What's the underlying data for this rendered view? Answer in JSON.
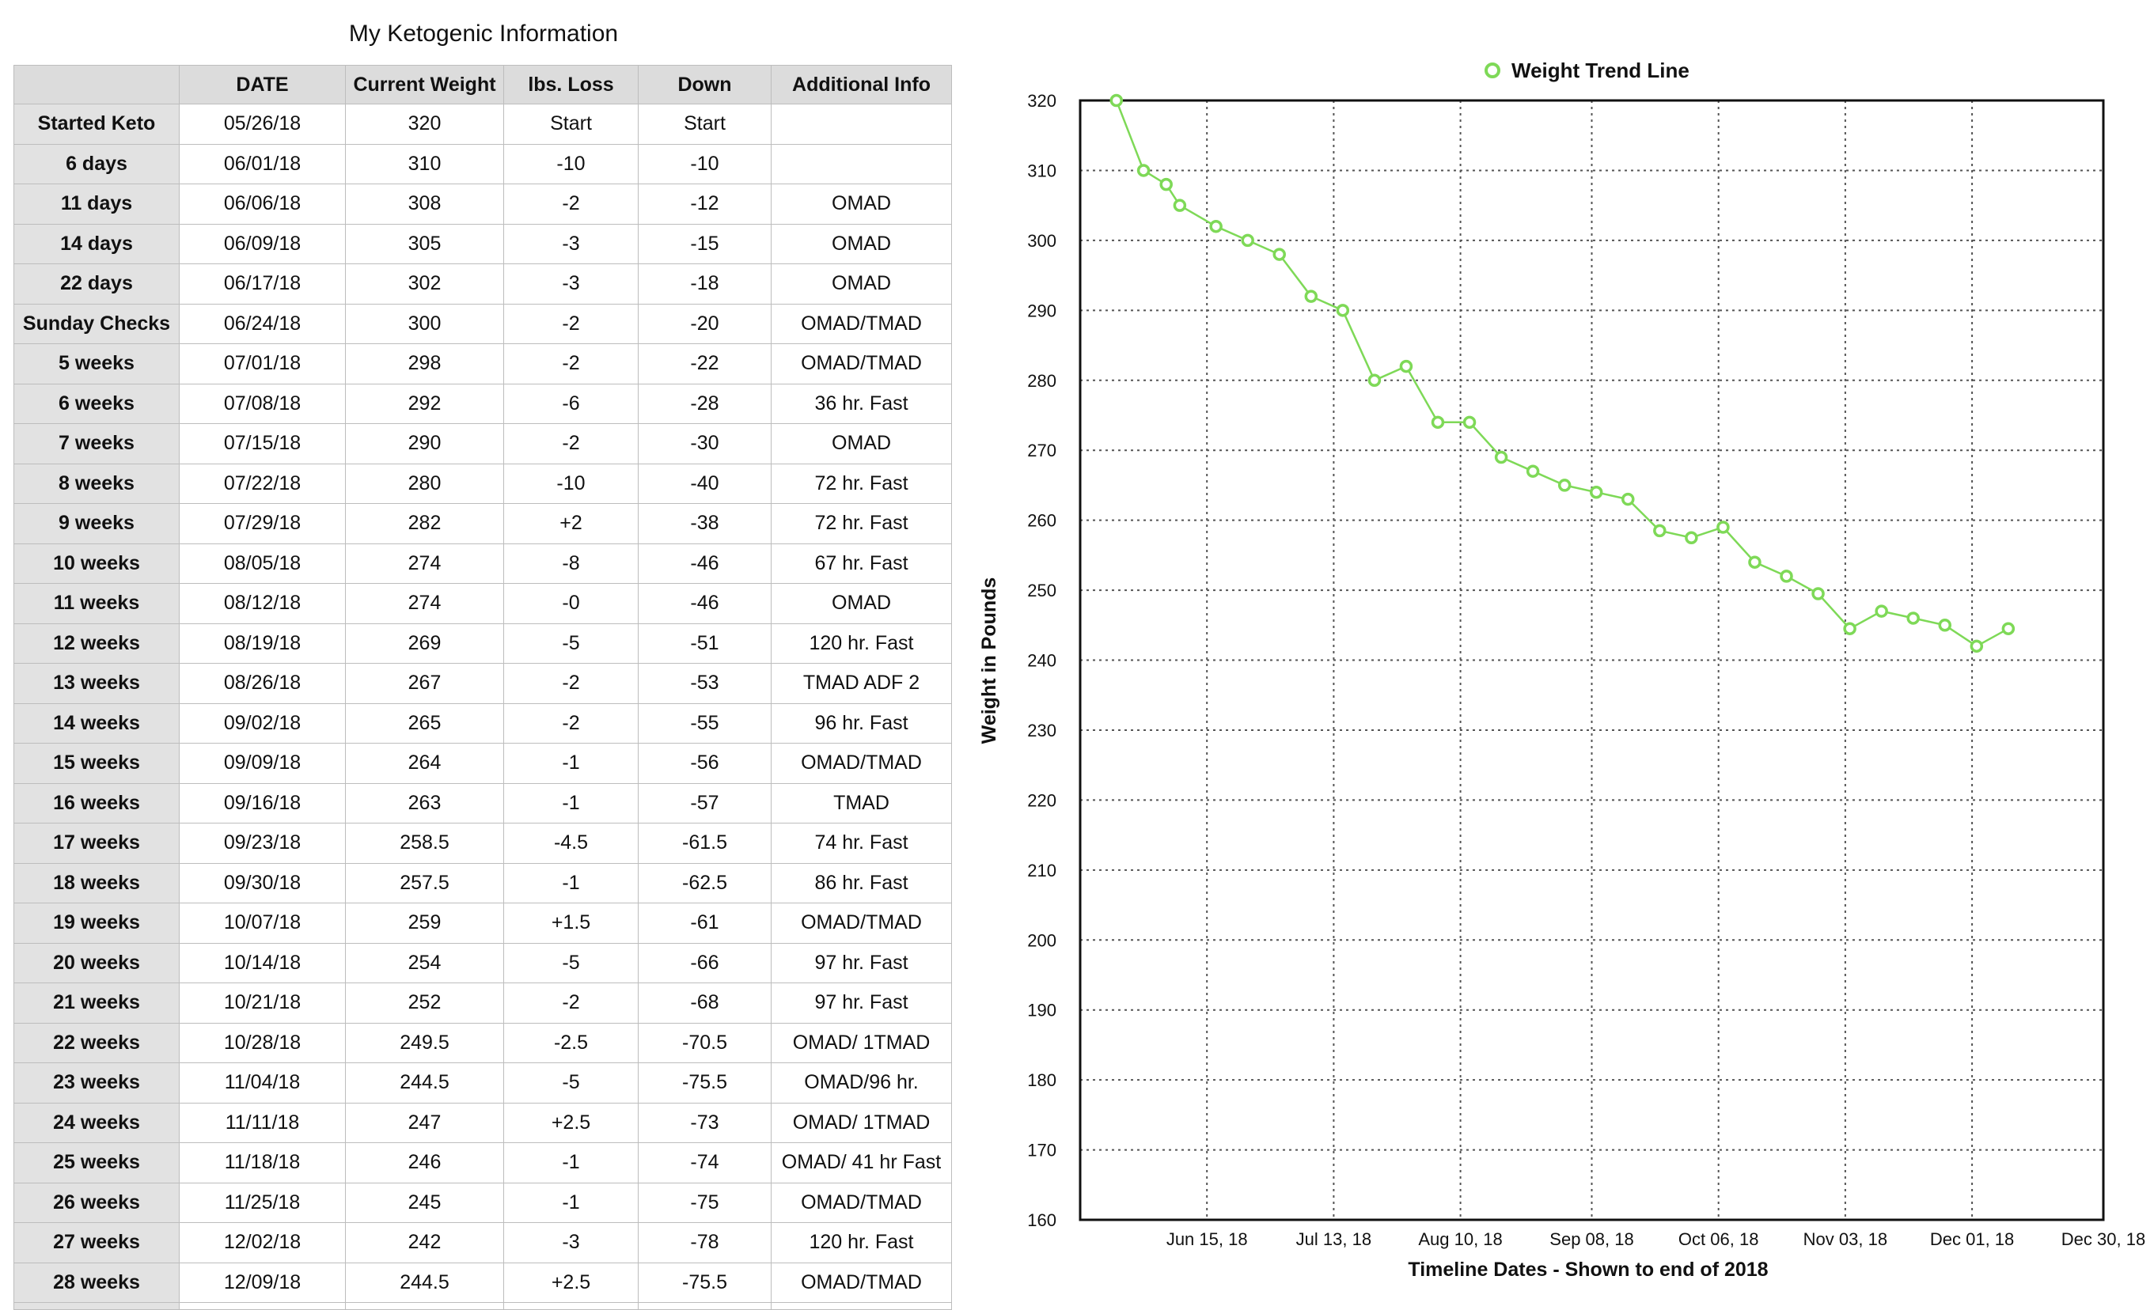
{
  "table": {
    "title": "My Ketogenic Information",
    "headers": [
      "",
      "DATE",
      "Current Weight",
      "lbs. Loss",
      "Down",
      "Additional Info"
    ],
    "rows": [
      [
        "Started Keto",
        "05/26/18",
        "320",
        "Start",
        "Start",
        ""
      ],
      [
        "6 days",
        "06/01/18",
        "310",
        "-10",
        "-10",
        ""
      ],
      [
        "11 days",
        "06/06/18",
        "308",
        "-2",
        "-12",
        "OMAD"
      ],
      [
        "14 days",
        "06/09/18",
        "305",
        "-3",
        "-15",
        "OMAD"
      ],
      [
        "22 days",
        "06/17/18",
        "302",
        "-3",
        "-18",
        "OMAD"
      ],
      [
        "Sunday Checks",
        "06/24/18",
        "300",
        "-2",
        "-20",
        "OMAD/TMAD"
      ],
      [
        "5 weeks",
        "07/01/18",
        "298",
        "-2",
        "-22",
        "OMAD/TMAD"
      ],
      [
        "6 weeks",
        "07/08/18",
        "292",
        "-6",
        "-28",
        "36 hr. Fast"
      ],
      [
        "7 weeks",
        "07/15/18",
        "290",
        "-2",
        "-30",
        "OMAD"
      ],
      [
        "8 weeks",
        "07/22/18",
        "280",
        "-10",
        "-40",
        "72 hr. Fast"
      ],
      [
        "9 weeks",
        "07/29/18",
        "282",
        "+2",
        "-38",
        "72 hr. Fast"
      ],
      [
        "10 weeks",
        "08/05/18",
        "274",
        "-8",
        "-46",
        "67 hr. Fast"
      ],
      [
        "11 weeks",
        "08/12/18",
        "274",
        "-0",
        "-46",
        "OMAD"
      ],
      [
        "12 weeks",
        "08/19/18",
        "269",
        "-5",
        "-51",
        "120 hr. Fast"
      ],
      [
        "13 weeks",
        "08/26/18",
        "267",
        "-2",
        "-53",
        "TMAD ADF 2"
      ],
      [
        "14 weeks",
        "09/02/18",
        "265",
        "-2",
        "-55",
        "96 hr. Fast"
      ],
      [
        "15 weeks",
        "09/09/18",
        "264",
        "-1",
        "-56",
        "OMAD/TMAD"
      ],
      [
        "16 weeks",
        "09/16/18",
        "263",
        "-1",
        "-57",
        "TMAD"
      ],
      [
        "17 weeks",
        "09/23/18",
        "258.5",
        "-4.5",
        "-61.5",
        "74 hr. Fast"
      ],
      [
        "18 weeks",
        "09/30/18",
        "257.5",
        "-1",
        "-62.5",
        "86 hr. Fast"
      ],
      [
        "19 weeks",
        "10/07/18",
        "259",
        "+1.5",
        "-61",
        "OMAD/TMAD"
      ],
      [
        "20 weeks",
        "10/14/18",
        "254",
        "-5",
        "-66",
        "97 hr. Fast"
      ],
      [
        "21 weeks",
        "10/21/18",
        "252",
        "-2",
        "-68",
        "97 hr. Fast"
      ],
      [
        "22 weeks",
        "10/28/18",
        "249.5",
        "-2.5",
        "-70.5",
        "OMAD/ 1TMAD"
      ],
      [
        "23 weeks",
        "11/04/18",
        "244.5",
        "-5",
        "-75.5",
        "OMAD/96 hr."
      ],
      [
        "24 weeks",
        "11/11/18",
        "247",
        "+2.5",
        "-73",
        "OMAD/ 1TMAD"
      ],
      [
        "25 weeks",
        "11/18/18",
        "246",
        "-1",
        "-74",
        "OMAD/ 41 hr Fast"
      ],
      [
        "26 weeks",
        "11/25/18",
        "245",
        "-1",
        "-75",
        "OMAD/TMAD"
      ],
      [
        "27 weeks",
        "12/02/18",
        "242",
        "-3",
        "-78",
        "120 hr. Fast"
      ],
      [
        "28 weeks",
        "12/09/18",
        "244.5",
        "+2.5",
        "-75.5",
        "OMAD/TMAD"
      ]
    ]
  },
  "chart_data": {
    "type": "line",
    "title": "",
    "xlabel": "Timeline Dates - Shown to end of 2018",
    "ylabel": "Weight in Pounds",
    "ylim": [
      160,
      320
    ],
    "xlim": [
      "2018-05-18",
      "2018-12-30"
    ],
    "y_ticks": [
      "160",
      "170",
      "180",
      "190",
      "200",
      "210",
      "220",
      "230",
      "240",
      "250",
      "260",
      "270",
      "280",
      "290",
      "300",
      "310",
      "320"
    ],
    "x_tick_dates": [
      "2018-06-15",
      "2018-07-13",
      "2018-08-10",
      "2018-09-08",
      "2018-10-06",
      "2018-11-03",
      "2018-12-01",
      "2018-12-30"
    ],
    "x_tick_labels": [
      "Jun 15, 18",
      "Jul 13, 18",
      "Aug 10, 18",
      "Sep 08, 18",
      "Oct 06, 18",
      "Nov 03, 18",
      "Dec 01, 18",
      "Dec 30, 18"
    ],
    "grid": true,
    "legend_position": "top-center",
    "series": [
      {
        "name": "Weight Trend Line",
        "color": "#7ed957",
        "marker": "open-circle",
        "x": [
          "2018-05-26",
          "2018-06-01",
          "2018-06-06",
          "2018-06-09",
          "2018-06-17",
          "2018-06-24",
          "2018-07-01",
          "2018-07-08",
          "2018-07-15",
          "2018-07-22",
          "2018-07-29",
          "2018-08-05",
          "2018-08-12",
          "2018-08-19",
          "2018-08-26",
          "2018-09-02",
          "2018-09-09",
          "2018-09-16",
          "2018-09-23",
          "2018-09-30",
          "2018-10-07",
          "2018-10-14",
          "2018-10-21",
          "2018-10-28",
          "2018-11-04",
          "2018-11-11",
          "2018-11-18",
          "2018-11-25",
          "2018-12-02",
          "2018-12-09"
        ],
        "y": [
          320,
          310,
          308,
          305,
          302,
          300,
          298,
          292,
          290,
          280,
          282,
          274,
          274,
          269,
          267,
          265,
          264,
          263,
          258.5,
          257.5,
          259,
          254,
          252,
          249.5,
          244.5,
          247,
          246,
          245,
          242,
          244.5
        ]
      }
    ]
  }
}
